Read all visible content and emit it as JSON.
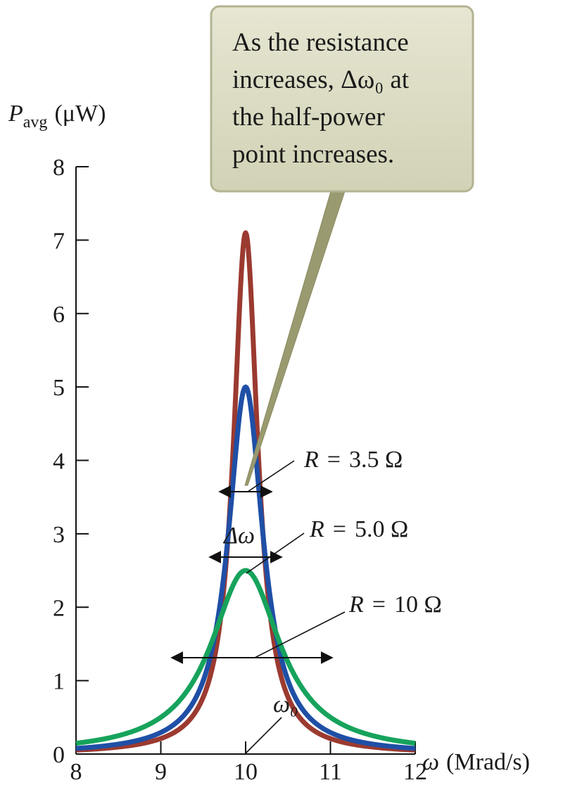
{
  "chart_data": {
    "type": "line",
    "y_axis_label_symbol": "P",
    "y_axis_label_subscript": "avg",
    "y_axis_label_units": "(μW)",
    "x_axis_label_symbol": "ω",
    "x_axis_label_units": "(Mrad/s)",
    "xlim": [
      8,
      12
    ],
    "ylim": [
      0,
      8
    ],
    "x_ticks": [
      "8",
      "9",
      "10",
      "11",
      "12"
    ],
    "y_ticks": [
      "0",
      "1",
      "2",
      "3",
      "4",
      "5",
      "6",
      "7",
      "8"
    ],
    "grid": false,
    "resonance_frequency": 10,
    "series": [
      {
        "name": "R = 3.5 Ω",
        "color": "#9b3a30",
        "peak": 7.1,
        "half_width": 0.175,
        "x": [
          8.0,
          8.5,
          9.0,
          9.3,
          9.5,
          9.7,
          9.8,
          9.9,
          10.0,
          10.1,
          10.2,
          10.3,
          10.5,
          10.7,
          11.0,
          11.5,
          12.0
        ],
        "y": [
          0.14,
          0.25,
          0.55,
          1.14,
          2.1,
          4.0,
          5.3,
          6.6,
          7.1,
          6.6,
          5.3,
          4.0,
          2.1,
          1.14,
          0.55,
          0.25,
          0.14
        ]
      },
      {
        "name": "R = 5.0 Ω",
        "color": "#1f4fa6",
        "peak": 5.0,
        "half_width": 0.25,
        "x": [
          8.0,
          8.5,
          9.0,
          9.3,
          9.5,
          9.7,
          9.8,
          9.9,
          10.0,
          10.1,
          10.2,
          10.3,
          10.5,
          10.7,
          11.0,
          11.5,
          12.0
        ],
        "y": [
          0.3,
          0.5,
          1.15,
          1.8,
          2.5,
          3.7,
          4.3,
          4.8,
          5.0,
          4.8,
          4.3,
          3.7,
          2.5,
          1.8,
          1.15,
          0.5,
          0.3
        ]
      },
      {
        "name": "R = 10 Ω",
        "color": "#16a35c",
        "peak": 2.5,
        "half_width": 0.5,
        "x": [
          8.0,
          8.5,
          9.0,
          9.3,
          9.5,
          9.7,
          9.8,
          9.9,
          10.0,
          10.1,
          10.2,
          10.3,
          10.5,
          10.7,
          11.0,
          11.5,
          12.0
        ],
        "y": [
          0.4,
          0.7,
          1.25,
          1.6,
          1.9,
          2.25,
          2.38,
          2.47,
          2.5,
          2.47,
          2.38,
          2.25,
          1.9,
          1.6,
          1.25,
          0.7,
          0.4
        ]
      }
    ],
    "annotations": {
      "callout_lines": [
        "As the resistance",
        "increases, Δω₀ at",
        "the half-power",
        "point increases."
      ],
      "delta_omega_label": "Δω",
      "omega0_label": "ω₀",
      "r_label_prefix": "R",
      "r_label_eq": "=",
      "r_values": [
        "3.5 Ω",
        "5.0 Ω",
        "10 Ω"
      ]
    },
    "callout_fill": "#dcdcc4",
    "callout_pointer_color": "#9a9a70"
  }
}
